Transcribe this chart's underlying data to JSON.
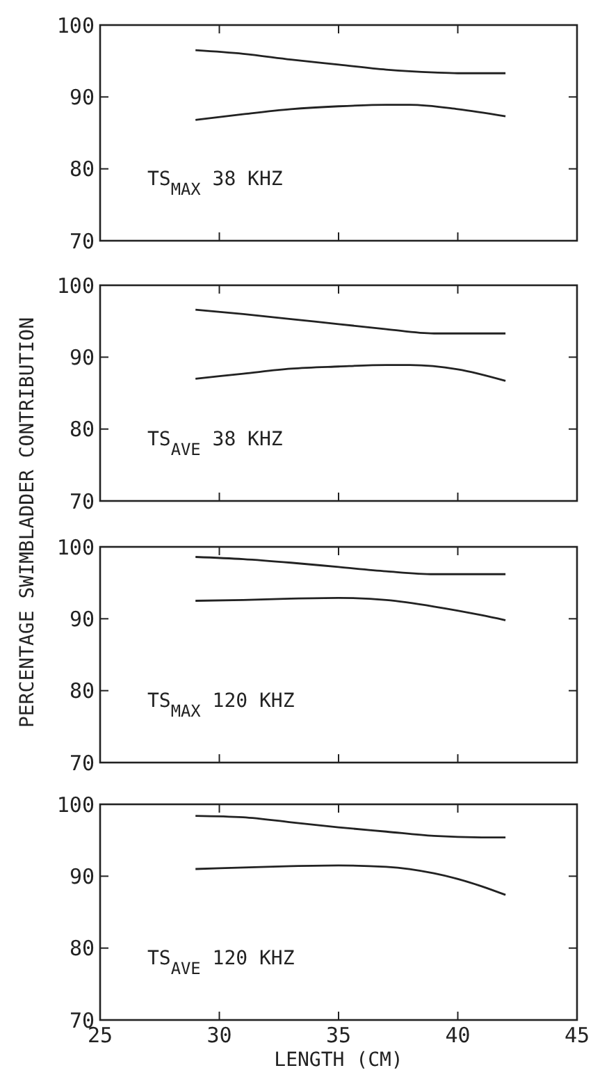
{
  "chart_data": [
    {
      "type": "line",
      "xlim": [
        25,
        45
      ],
      "xticks": [
        25,
        30,
        35,
        40,
        45
      ],
      "ylim": [
        70,
        100
      ],
      "yticks": [
        70,
        80,
        90,
        100
      ],
      "tick_labels": "y",
      "grid": false,
      "marker": "none",
      "line_style": "solid",
      "annotations": [
        "TS$_{MAX}$  38 KHZ"
      ],
      "series": [
        {
          "color": "#222222",
          "x": [
            29,
            31,
            33,
            35,
            37,
            39,
            40,
            42
          ],
          "values": [
            96.5,
            96,
            95.2,
            94.5,
            93.8,
            93.4,
            93.3,
            93.3
          ]
        },
        {
          "color": "#222222",
          "x": [
            29,
            31,
            33,
            35,
            37,
            38,
            40,
            42
          ],
          "values": [
            86.8,
            87.6,
            88.3,
            88.7,
            88.9,
            88.9,
            88.3,
            87.3
          ]
        }
      ]
    },
    {
      "type": "line",
      "xlim": [
        25,
        45
      ],
      "xticks": [
        25,
        30,
        35,
        40,
        45
      ],
      "ylim": [
        70,
        100
      ],
      "yticks": [
        70,
        80,
        90,
        100
      ],
      "tick_labels": "y",
      "grid": false,
      "marker": "none",
      "line_style": "solid",
      "ylabel": "PERCENTAGE SWIMBLADDER CONTRIBUTION",
      "annotations": [
        "TS$_{AVE}$  38 KHZ"
      ],
      "series": [
        {
          "color": "#222222",
          "x": [
            29,
            31,
            33,
            35,
            37,
            39,
            42
          ],
          "values": [
            96.6,
            96,
            95.3,
            94.6,
            93.9,
            93.3,
            93.3
          ]
        },
        {
          "color": "#222222",
          "x": [
            29,
            31,
            33,
            35,
            37,
            38,
            40,
            42
          ],
          "values": [
            87,
            87.7,
            88.4,
            88.7,
            88.9,
            88.9,
            88.3,
            86.7
          ]
        }
      ]
    },
    {
      "type": "line",
      "xlim": [
        25,
        45
      ],
      "xticks": [
        25,
        30,
        35,
        40,
        45
      ],
      "ylim": [
        70,
        100
      ],
      "yticks": [
        70,
        80,
        90,
        100
      ],
      "tick_labels": "y",
      "grid": false,
      "marker": "none",
      "line_style": "solid",
      "annotations": [
        "TS$_{MAX}$  120 KHZ"
      ],
      "series": [
        {
          "color": "#222222",
          "x": [
            29,
            31,
            33,
            35,
            37,
            39,
            42
          ],
          "values": [
            98.6,
            98.3,
            97.8,
            97.2,
            96.6,
            96.2,
            96.2
          ]
        },
        {
          "color": "#222222",
          "x": [
            29,
            31,
            33,
            35,
            37,
            39,
            41,
            42
          ],
          "values": [
            92.5,
            92.6,
            92.8,
            92.9,
            92.6,
            91.7,
            90.5,
            89.8
          ]
        }
      ]
    },
    {
      "type": "line",
      "xlim": [
        25,
        45
      ],
      "xticks": [
        25,
        30,
        35,
        40,
        45
      ],
      "ylim": [
        70,
        100
      ],
      "yticks": [
        70,
        80,
        90,
        100
      ],
      "grid": false,
      "marker": "none",
      "line_style": "solid",
      "xlabel": "LENGTH (CM)",
      "annotations": [
        "TS$_{AVE}$  120 KHZ"
      ],
      "series": [
        {
          "color": "#222222",
          "x": [
            29,
            31,
            33,
            35,
            37,
            39,
            41,
            42
          ],
          "values": [
            98.4,
            98.2,
            97.5,
            96.8,
            96.2,
            95.6,
            95.4,
            95.4
          ]
        },
        {
          "color": "#222222",
          "x": [
            29,
            31,
            33,
            35,
            37,
            39,
            41,
            42
          ],
          "values": [
            91,
            91.2,
            91.4,
            91.5,
            91.3,
            90.4,
            88.6,
            87.4
          ]
        }
      ]
    }
  ]
}
